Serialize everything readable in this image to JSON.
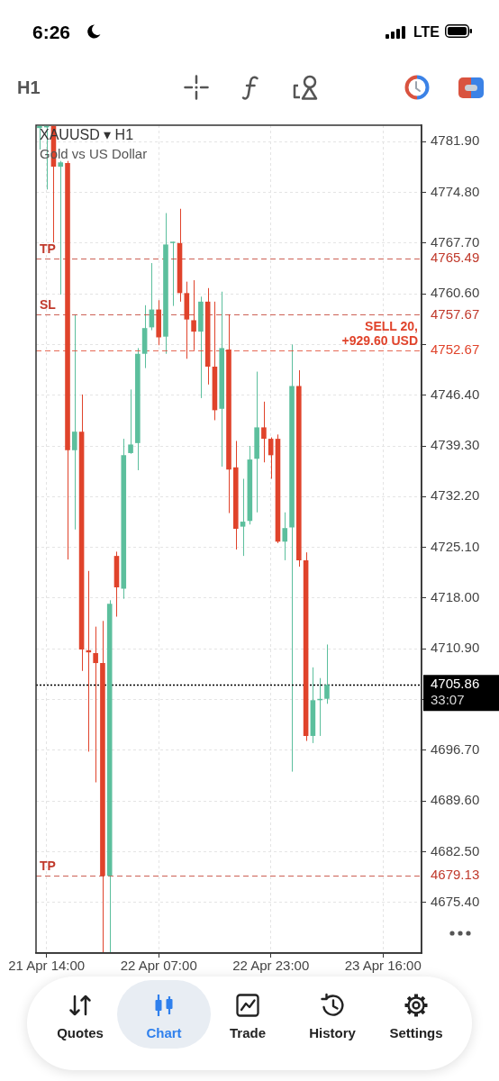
{
  "chart_data": {
    "type": "candlestick",
    "title": "XAUUSD ▾ H1",
    "subtitle": "Gold vs US Dollar",
    "categories": [
      null,
      "21 Apr 14:00",
      null,
      null,
      null,
      null,
      null,
      null,
      null,
      null,
      null,
      null,
      null,
      null,
      null,
      null,
      null,
      "22 Apr 07:00",
      null,
      null,
      null,
      null,
      null,
      null,
      null,
      null,
      null,
      null,
      null,
      null,
      null,
      null,
      null,
      "22 Apr 23:00",
      null,
      null,
      null,
      null,
      null,
      null,
      null,
      null,
      null,
      null,
      null,
      null,
      null,
      null,
      null,
      "23 Apr 16:00",
      null,
      null,
      null,
      null,
      null
    ],
    "ohlc": [
      [
        4783.8,
        4784.1,
        4780.8,
        4784.1
      ],
      [
        4783.9,
        4784.1,
        4775.2,
        4784.1
      ],
      [
        4784.1,
        4784.1,
        4767.8,
        4778.4
      ],
      [
        4778.4,
        4779.2,
        4760.5,
        4779.0
      ],
      [
        4778.9,
        4779.2,
        4723.4,
        4738.7
      ],
      [
        4738.7,
        4757.7,
        4727.6,
        4741.3
      ],
      [
        4741.3,
        4746.5,
        4707.8,
        4710.8
      ],
      [
        4710.7,
        4721.8,
        4696.5,
        4710.4
      ],
      [
        4710.3,
        4714.0,
        4692.2,
        4708.9
      ],
      [
        4708.9,
        4714.8,
        4668.4,
        4679.1
      ],
      [
        4679.1,
        4717.7,
        4668.4,
        4717.2
      ],
      [
        4723.9,
        4724.5,
        4715.4,
        4719.5
      ],
      [
        4719.3,
        4740.3,
        4717.9,
        4738.0
      ],
      [
        4738.3,
        4747.2,
        4738.2,
        4739.5
      ],
      [
        4739.7,
        4753.0,
        4735.9,
        4752.2
      ],
      [
        4752.2,
        4759.0,
        4750.2,
        4755.8
      ],
      [
        4755.9,
        4764.9,
        4755.5,
        4758.4
      ],
      [
        4758.4,
        4759.7,
        4753.4,
        4754.5
      ],
      [
        4754.6,
        4771.9,
        4752.2,
        4767.5
      ],
      [
        4767.7,
        4767.9,
        4758.9,
        4767.8
      ],
      [
        4767.7,
        4772.5,
        4759.5,
        4760.7
      ],
      [
        4760.7,
        4762.3,
        4751.5,
        4757.0
      ],
      [
        4756.9,
        4762.5,
        4752.7,
        4755.3
      ],
      [
        4755.3,
        4760.2,
        4746.0,
        4759.5
      ],
      [
        4759.5,
        4761.4,
        4747.9,
        4750.4
      ],
      [
        4750.4,
        4759.5,
        4742.9,
        4744.3
      ],
      [
        4744.5,
        4760.9,
        4736.4,
        4753.0
      ],
      [
        4752.8,
        4757.7,
        4729.9,
        4736.0
      ],
      [
        4736.3,
        4740.0,
        4724.8,
        4727.7
      ],
      [
        4728.0,
        4734.7,
        4723.9,
        4728.7
      ],
      [
        4728.8,
        4739.3,
        4728.3,
        4737.4
      ],
      [
        4737.5,
        4749.7,
        4730.0,
        4741.9
      ],
      [
        4741.9,
        4745.5,
        4737.0,
        4740.3
      ],
      [
        4740.3,
        4740.5,
        4734.7,
        4738.0
      ],
      [
        4740.3,
        4740.9,
        4725.7,
        4725.9
      ],
      [
        4725.9,
        4730.0,
        4723.3,
        4727.8
      ],
      [
        4727.9,
        4753.5,
        4693.7,
        4747.7
      ],
      [
        4747.7,
        4749.9,
        4722.4,
        4723.3
      ],
      [
        4723.3,
        4724.4,
        4698.0,
        4698.7
      ],
      [
        4698.7,
        4708.3,
        4697.7,
        4703.7
      ],
      [
        4703.7,
        4706.8,
        4698.7,
        4703.8
      ],
      [
        4703.9,
        4711.5,
        4703.2,
        4705.86
      ],
      null,
      null,
      null,
      null,
      null,
      null,
      null,
      null,
      null,
      null,
      null,
      null,
      null
    ],
    "colors": [
      "#5cbf9d",
      "#5cbf9d",
      "#e0432b",
      "#5cbf9d",
      "#e0432b",
      "#5cbf9d",
      "#e0432b",
      "#e0432b",
      "#e0432b",
      "#e0432b",
      "#5cbf9d",
      "#e0432b",
      "#5cbf9d",
      "#5cbf9d",
      "#5cbf9d",
      "#5cbf9d",
      "#5cbf9d",
      "#e0432b",
      "#5cbf9d",
      "#5cbf9d",
      "#e0432b",
      "#e0432b",
      "#e0432b",
      "#5cbf9d",
      "#e0432b",
      "#e0432b",
      "#5cbf9d",
      "#e0432b",
      "#e0432b",
      "#5cbf9d",
      "#5cbf9d",
      "#5cbf9d",
      "#e0432b",
      "#e0432b",
      "#e0432b",
      "#5cbf9d",
      "#5cbf9d",
      "#e0432b",
      "#e0432b",
      "#5cbf9d",
      "#5cbf9d",
      "#5cbf9d",
      null,
      null,
      null,
      null,
      null,
      null,
      null,
      null,
      null,
      null,
      null,
      null,
      null
    ],
    "ylim": [
      4668.3,
      4784.2
    ],
    "yticks": [
      {
        "value": 4781.9,
        "label": "4781.90"
      },
      {
        "value": 4774.8,
        "label": "4774.80"
      },
      {
        "value": 4767.7,
        "label": "4767.70"
      },
      {
        "value": 4760.6,
        "label": "4760.60"
      },
      {
        "value": 4753.5,
        "label": null
      },
      {
        "value": 4746.4,
        "label": "4746.40"
      },
      {
        "value": 4739.3,
        "label": "4739.30"
      },
      {
        "value": 4732.2,
        "label": "4732.20"
      },
      {
        "value": 4725.1,
        "label": "4725.10"
      },
      {
        "value": 4718.0,
        "label": "4718.00"
      },
      {
        "value": 4710.9,
        "label": "4710.90"
      },
      {
        "value": 4703.8,
        "label": null
      },
      {
        "value": 4696.7,
        "label": "4696.70"
      },
      {
        "value": 4689.6,
        "label": "4689.60"
      },
      {
        "value": 4682.5,
        "label": "4682.50"
      },
      {
        "value": 4675.4,
        "label": "4675.40"
      }
    ],
    "grid": true,
    "ref_lines": [
      {
        "axis": "y",
        "value": 4765.49,
        "label": "4765.49",
        "color": "#c0392b",
        "line_style": "dashed"
      },
      {
        "axis": "y",
        "value": 4757.67,
        "label": "4757.67",
        "color": "#c0392b",
        "line_style": "dashed"
      },
      {
        "axis": "y",
        "value": 4752.67,
        "label": "4752.67",
        "color": "#e0432b",
        "line_style": "dashed"
      },
      {
        "axis": "y",
        "value": 4705.86,
        "label": "4705.86",
        "color": "#000000",
        "line_style": "dotted"
      },
      {
        "axis": "y",
        "value": 4679.13,
        "label": "4679.13",
        "color": "#c0392b",
        "line_style": "dashed"
      }
    ],
    "annotations": [
      {
        "text": "TP",
        "y": 4765.49
      },
      {
        "text": "SL",
        "y": 4757.67
      },
      {
        "text": "SELL 20, +929.60 USD",
        "y": 4752.67
      },
      {
        "text": "TP",
        "y": 4679.13
      },
      "33:07",
      "6:26",
      "LTE",
      "H1",
      "Quotes",
      "Chart",
      "Trade",
      "History",
      "Settings"
    ]
  }
}
